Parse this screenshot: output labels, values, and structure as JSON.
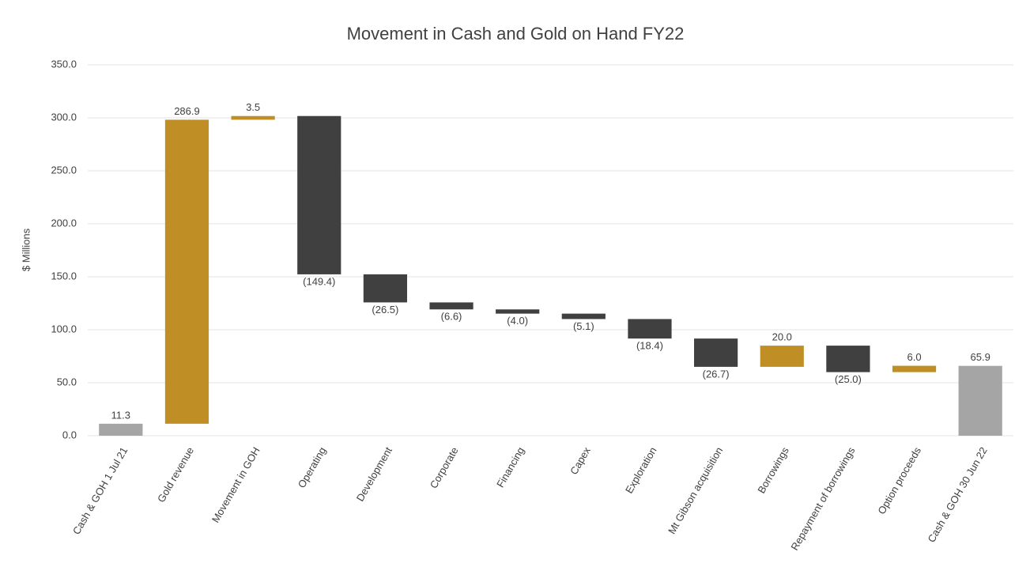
{
  "chart_data": {
    "type": "waterfall",
    "title": "Movement in Cash and Gold on Hand FY22",
    "y_label": "$ Millions",
    "categories": [
      "Cash & GOH 1 Jul 21",
      "Gold revenue",
      "Movement in GOH",
      "Operating",
      "Development",
      "Corporate",
      "Financing",
      "Capex",
      "Exploration",
      "Mt Gibson acquisition",
      "Borrowings",
      "Repayment of borrowings",
      "Option proceeds",
      "Cash & GOH 30 Jun 22"
    ],
    "values": [
      11.3,
      286.9,
      3.5,
      -149.4,
      -26.5,
      -6.6,
      -4.0,
      -5.1,
      -18.4,
      -26.7,
      20.0,
      -25.0,
      6.0,
      65.9
    ],
    "value_labels": [
      "11.3",
      "286.9",
      "3.5",
      "(149.4)",
      "(26.5)",
      "(6.6)",
      "(4.0)",
      "(5.1)",
      "(18.4)",
      "(26.7)",
      "20.0",
      "(25.0)",
      "6.0",
      "65.9"
    ],
    "colors": [
      "#a5a5a5",
      "#bf8f26",
      "#bf8f26",
      "#404040",
      "#404040",
      "#404040",
      "#404040",
      "#404040",
      "#404040",
      "#404040",
      "#bf8f26",
      "#404040",
      "#bf8f26",
      "#a5a5a5"
    ],
    "ylim": [
      0,
      350
    ],
    "yticks": [
      {
        "value": 0,
        "label": "0.0"
      },
      {
        "value": 50,
        "label": "50.0"
      },
      {
        "value": 100,
        "label": "100.0"
      },
      {
        "value": 150,
        "label": "150.0"
      },
      {
        "value": 200,
        "label": "200.0"
      },
      {
        "value": 250,
        "label": "250.0"
      },
      {
        "value": 300,
        "label": "300.0"
      },
      {
        "value": 350,
        "label": "350.0"
      }
    ],
    "grid": true
  }
}
